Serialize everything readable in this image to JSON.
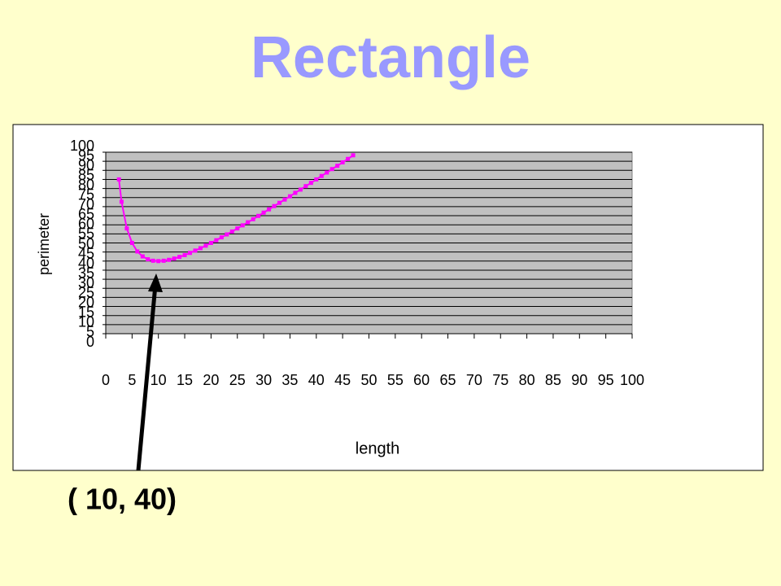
{
  "chart_data": {
    "type": "line",
    "title": "Rectangle",
    "x_label": "length",
    "y_label": "perimeter",
    "annotation": "( 10, 40)",
    "series": [
      {
        "name": "perimeter",
        "color": "#ff00ff",
        "x": [
          2.5,
          3,
          4,
          5,
          6,
          7,
          8,
          9,
          10,
          11,
          12,
          13,
          14,
          15,
          16,
          17,
          18,
          19,
          20,
          21,
          22,
          23,
          24,
          25,
          26,
          27,
          28,
          29,
          30,
          31,
          32,
          33,
          34,
          35,
          36,
          37,
          38,
          39,
          40,
          41,
          42,
          43,
          44,
          45,
          46,
          47
        ],
        "values": [
          85,
          72.7,
          58,
          50,
          45.3,
          42.6,
          41,
          40.2,
          40,
          40.2,
          40.7,
          41.4,
          42.3,
          43.3,
          44.5,
          45.8,
          47.1,
          48.5,
          50,
          51.5,
          53.1,
          54.7,
          56.3,
          58,
          59.7,
          61.4,
          63.1,
          64.9,
          66.7,
          68.5,
          70.3,
          72.1,
          73.9,
          75.7,
          77.6,
          79.4,
          81.3,
          83.1,
          85,
          86.9,
          88.8,
          90.7,
          92.5,
          94.4,
          96.3,
          98.3
        ]
      }
    ],
    "xlim": [
      0,
      100
    ],
    "xticks": [
      0,
      5,
      10,
      15,
      20,
      25,
      30,
      35,
      40,
      45,
      50,
      55,
      60,
      65,
      70,
      75,
      80,
      85,
      90,
      95,
      100
    ],
    "ylim": [
      0,
      100
    ],
    "yticks": [
      0,
      5,
      10,
      15,
      20,
      25,
      30,
      35,
      40,
      45,
      50,
      55,
      60,
      65,
      70,
      75,
      80,
      85,
      90,
      95,
      100
    ],
    "grid": true,
    "plot_background": "#c0c0c0"
  }
}
